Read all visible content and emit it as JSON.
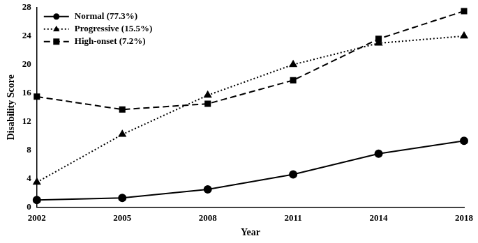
{
  "chart_data": {
    "type": "line",
    "x_label": "Year",
    "y_label": "Disability Score",
    "categories": [
      "2002",
      "2005",
      "2008",
      "2011",
      "2014",
      "2018"
    ],
    "series": [
      {
        "name": "Normal (77.3%)",
        "color": "#000000",
        "marker": "circle",
        "line_style": "solid",
        "values": [
          1.0,
          1.3,
          2.5,
          4.6,
          7.5,
          9.3
        ]
      },
      {
        "name": "Progressive (15.5%)",
        "color": "#000000",
        "marker": "triangle",
        "line_style": "dotted",
        "values": [
          3.5,
          10.2,
          15.7,
          20.0,
          23.0,
          24.0
        ]
      },
      {
        "name": "High-onset (7.2%)",
        "color": "#000000",
        "marker": "square",
        "line_style": "dashed",
        "values": [
          15.5,
          13.7,
          14.5,
          17.8,
          23.6,
          27.5
        ]
      }
    ],
    "ylim": [
      0,
      28
    ],
    "yticks": [
      0,
      4,
      8,
      12,
      16,
      20,
      24,
      28
    ],
    "grid": false,
    "legend": "top-left"
  }
}
